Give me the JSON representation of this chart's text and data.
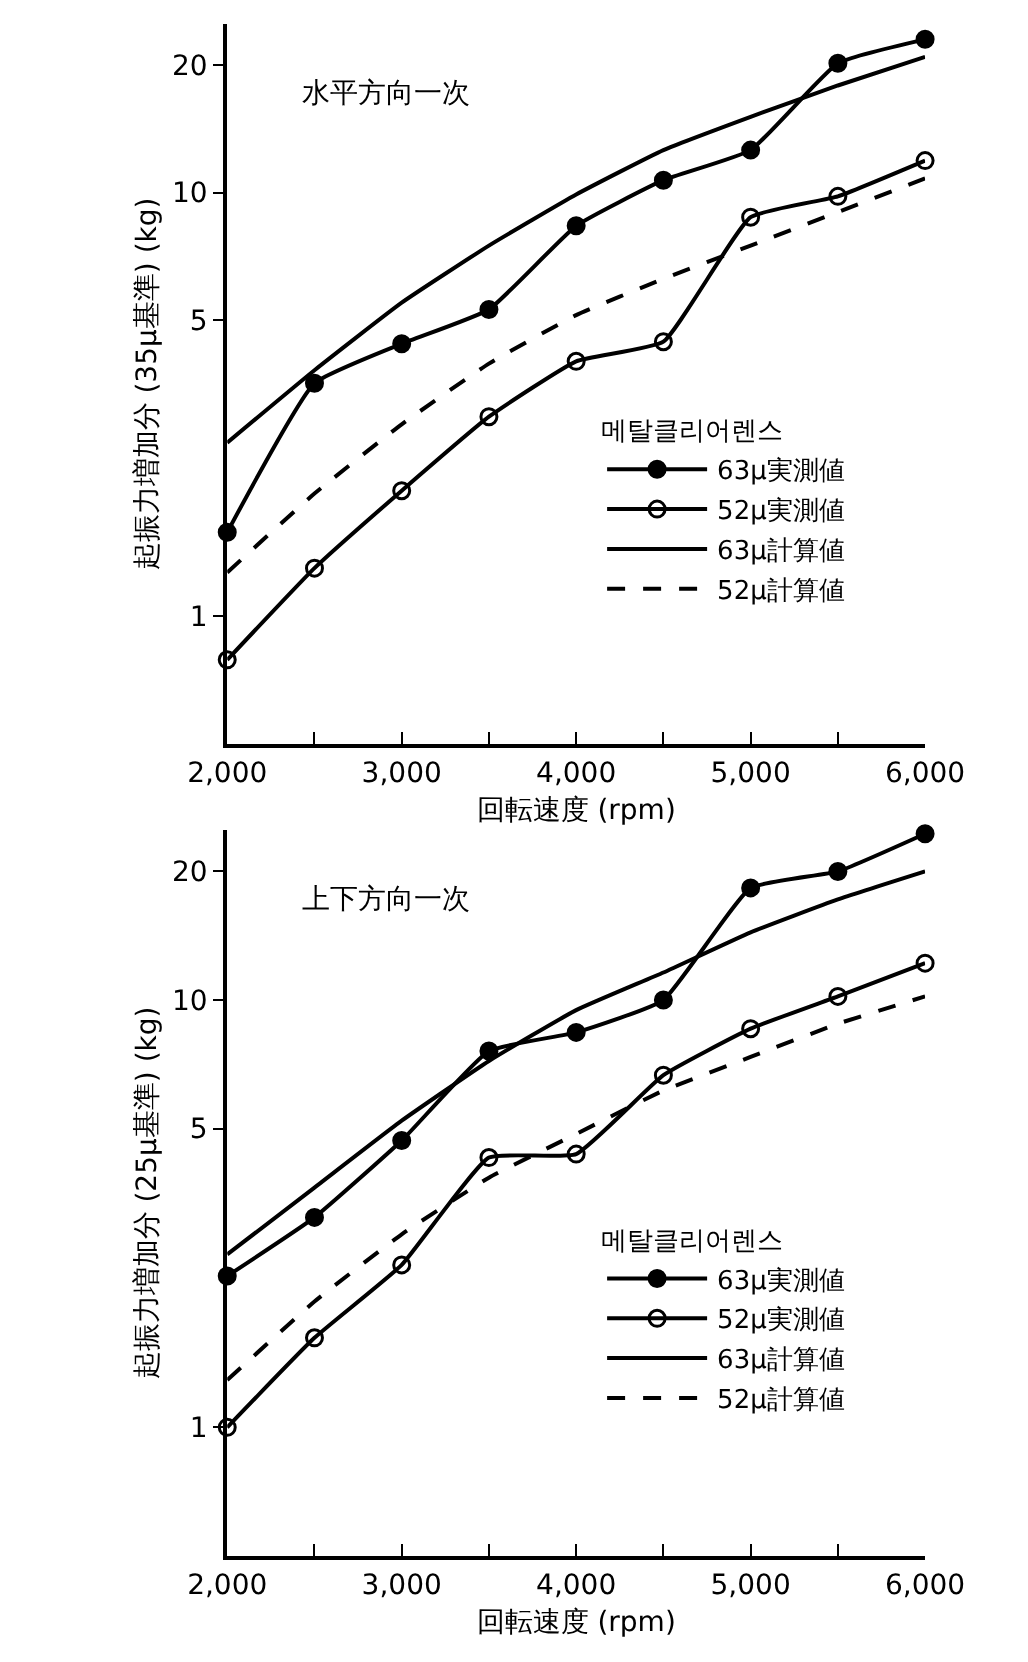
{
  "chart_data": [
    {
      "type": "line",
      "title": "水平方向一次",
      "xlabel": "回転速度 (rpm)",
      "ylabel": "起振力増加分 (35μ基準) (kg)",
      "legend_title": "메탈클리어렌스",
      "legend": "bottom right",
      "log": "y",
      "x": [
        2000,
        2500,
        3000,
        3500,
        4000,
        4500,
        5000,
        5500,
        6000
      ],
      "xlim": [
        2000,
        6000
      ],
      "xticks": [
        {
          "value": 2000,
          "label": "2,000"
        },
        {
          "value": 2500,
          "label": null
        },
        {
          "value": 3000,
          "label": "3,000"
        },
        {
          "value": 3500,
          "label": null
        },
        {
          "value": 4000,
          "label": "4,000"
        },
        {
          "value": 4500,
          "label": null
        },
        {
          "value": 5000,
          "label": "5,000"
        },
        {
          "value": 5500,
          "label": null
        },
        {
          "value": 6000,
          "label": "6,000"
        }
      ],
      "ylim": [
        0.5,
        25
      ],
      "yticks": [
        1,
        5,
        10,
        20
      ],
      "series": [
        {
          "name": "63μ実測値",
          "color": "#000000",
          "marker": "circle",
          "line_style": "solid",
          "values": [
            1.58,
            3.55,
            4.4,
            5.3,
            8.35,
            10.7,
            12.6,
            20.2,
            23
          ]
        },
        {
          "name": "52μ実測値",
          "color": "#000000",
          "marker": "circle-open",
          "line_style": "solid",
          "values": [
            0.79,
            1.3,
            1.98,
            2.96,
            4.0,
            4.45,
            8.75,
            9.8,
            11.9
          ]
        },
        {
          "name": "63μ計算値",
          "color": "#000000",
          "marker": "none",
          "line_style": "solid",
          "values": [
            2.57,
            3.81,
            5.5,
            7.5,
            9.9,
            12.6,
            15.1,
            17.9,
            20.9
          ]
        },
        {
          "name": "52μ計算値",
          "color": "#000000",
          "marker": "none",
          "line_style": "dashed",
          "values": [
            1.27,
            1.95,
            2.84,
            3.95,
            5.14,
            6.26,
            7.5,
            9.0,
            10.8
          ]
        }
      ]
    },
    {
      "type": "line",
      "title": "上下方向一次",
      "xlabel": "回転速度 (rpm)",
      "ylabel": "起振力増加分 (25μ基準) (kg)",
      "legend_title": "메탈클리어렌스",
      "legend": "bottom right",
      "log": "y",
      "x": [
        2000,
        2500,
        3000,
        3500,
        4000,
        4500,
        5000,
        5500,
        6000
      ],
      "xlim": [
        2000,
        6000
      ],
      "xticks": [
        {
          "value": 2000,
          "label": "2,000"
        },
        {
          "value": 2500,
          "label": null
        },
        {
          "value": 3000,
          "label": "3,000"
        },
        {
          "value": 3500,
          "label": null
        },
        {
          "value": 4000,
          "label": "4,000"
        },
        {
          "value": 4500,
          "label": null
        },
        {
          "value": 5000,
          "label": "5,000"
        },
        {
          "value": 5500,
          "label": null
        },
        {
          "value": 6000,
          "label": "6,000"
        }
      ],
      "ylim": [
        0.5,
        25
      ],
      "yticks": [
        1,
        5,
        10,
        20
      ],
      "series": [
        {
          "name": "63μ実測値",
          "color": "#000000",
          "marker": "circle",
          "line_style": "solid",
          "values": [
            2.26,
            3.1,
            4.69,
            7.6,
            8.4,
            10,
            18.3,
            20,
            24.5
          ]
        },
        {
          "name": "52μ実測値",
          "color": "#000000",
          "marker": "circle-open",
          "line_style": "solid",
          "values": [
            1.0,
            1.62,
            2.4,
            4.28,
            4.36,
            6.67,
            8.57,
            10.2,
            12.2
          ]
        },
        {
          "name": "63μ計算値",
          "color": "#000000",
          "marker": "none",
          "line_style": "solid",
          "values": [
            2.54,
            3.64,
            5.22,
            7.2,
            9.47,
            11.6,
            14.4,
            17.2,
            20
          ]
        },
        {
          "name": "52μ計算値",
          "color": "#000000",
          "marker": "none",
          "line_style": "dashed",
          "values": [
            1.29,
            1.97,
            2.83,
            3.84,
            4.86,
            6.14,
            7.36,
            8.8,
            10.2
          ]
        }
      ]
    }
  ]
}
